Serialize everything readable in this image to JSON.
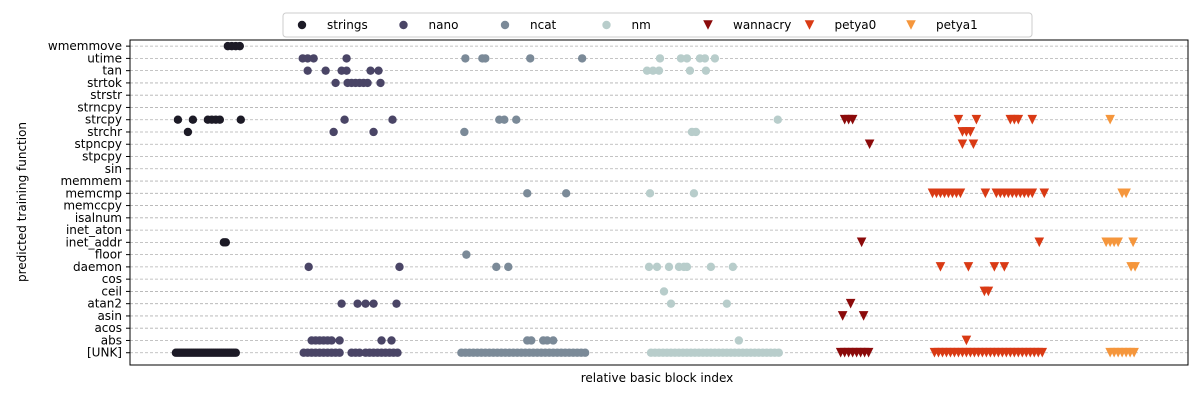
{
  "chart_data": {
    "type": "scatter",
    "xlabel": "relative basic block index",
    "ylabel": "predicted training function",
    "xlim": [
      0,
      1060
    ],
    "ylim": [
      -1,
      25.5
    ],
    "x_ticks": "none",
    "grid": {
      "axis": "y",
      "style": "dashed"
    },
    "legend_position": "top-center",
    "categories": [
      "[UNK]",
      "abs",
      "acos",
      "asin",
      "atan2",
      "ceil",
      "cos",
      "daemon",
      "floor",
      "inet_addr",
      "inet_aton",
      "isalnum",
      "memccpy",
      "memcmp",
      "memmem",
      "sin",
      "stpcpy",
      "stpncpy",
      "strchr",
      "strcpy",
      "strncpy",
      "strstr",
      "strtok",
      "tan",
      "utime",
      "wmemmove"
    ],
    "series": [
      {
        "name": "strings",
        "color": "#1c1a26",
        "marker": "circle",
        "points": [
          [
            46,
            0
          ],
          [
            48,
            0
          ],
          [
            50,
            0
          ],
          [
            52,
            0
          ],
          [
            54,
            0
          ],
          [
            56,
            0
          ],
          [
            58,
            0
          ],
          [
            60,
            0
          ],
          [
            62,
            0
          ],
          [
            64,
            0
          ],
          [
            66,
            0
          ],
          [
            68,
            0
          ],
          [
            70,
            0
          ],
          [
            72,
            0
          ],
          [
            74,
            0
          ],
          [
            76,
            0
          ],
          [
            78,
            0
          ],
          [
            80,
            0
          ],
          [
            82,
            0
          ],
          [
            84,
            0
          ],
          [
            86,
            0
          ],
          [
            88,
            0
          ],
          [
            90,
            0
          ],
          [
            92,
            0
          ],
          [
            94,
            0
          ],
          [
            96,
            0
          ],
          [
            98,
            0
          ],
          [
            100,
            0
          ],
          [
            102,
            0
          ],
          [
            104,
            0
          ],
          [
            106,
            0
          ],
          [
            94,
            9
          ],
          [
            96,
            9
          ],
          [
            58,
            18
          ],
          [
            48,
            19
          ],
          [
            63,
            19
          ],
          [
            78,
            19
          ],
          [
            82,
            19
          ],
          [
            86,
            19
          ],
          [
            90,
            19
          ],
          [
            111,
            19
          ],
          [
            98,
            25
          ],
          [
            102,
            25
          ],
          [
            106,
            25
          ],
          [
            110,
            25
          ]
        ]
      },
      {
        "name": "nano",
        "color": "#4a4566",
        "marker": "circle",
        "points": [
          [
            174,
            0
          ],
          [
            178,
            0
          ],
          [
            182,
            0
          ],
          [
            186,
            0
          ],
          [
            190,
            0
          ],
          [
            194,
            0
          ],
          [
            198,
            0
          ],
          [
            202,
            0
          ],
          [
            206,
            0
          ],
          [
            210,
            0
          ],
          [
            222,
            0
          ],
          [
            226,
            0
          ],
          [
            230,
            0
          ],
          [
            236,
            0
          ],
          [
            240,
            0
          ],
          [
            244,
            0
          ],
          [
            248,
            0
          ],
          [
            252,
            0
          ],
          [
            256,
            0
          ],
          [
            260,
            0
          ],
          [
            264,
            0
          ],
          [
            268,
            0
          ],
          [
            182,
            1
          ],
          [
            186,
            1
          ],
          [
            190,
            1
          ],
          [
            194,
            1
          ],
          [
            198,
            1
          ],
          [
            202,
            1
          ],
          [
            210,
            1
          ],
          [
            252,
            1
          ],
          [
            262,
            1
          ],
          [
            212,
            4
          ],
          [
            228,
            4
          ],
          [
            236,
            4
          ],
          [
            244,
            4
          ],
          [
            267,
            4
          ],
          [
            179,
            7
          ],
          [
            270,
            7
          ],
          [
            204,
            18
          ],
          [
            244,
            18
          ],
          [
            215,
            19
          ],
          [
            263,
            19
          ],
          [
            206,
            22
          ],
          [
            218,
            22
          ],
          [
            222,
            22
          ],
          [
            226,
            22
          ],
          [
            230,
            22
          ],
          [
            234,
            22
          ],
          [
            238,
            22
          ],
          [
            251,
            22
          ],
          [
            178,
            23
          ],
          [
            196,
            23
          ],
          [
            212,
            23
          ],
          [
            217,
            23
          ],
          [
            241,
            23
          ],
          [
            249,
            23
          ],
          [
            173,
            24
          ],
          [
            178,
            24
          ],
          [
            184,
            24
          ],
          [
            217,
            24
          ]
        ]
      },
      {
        "name": "ncat",
        "color": "#7b8a98",
        "marker": "circle",
        "points": [
          [
            332,
            0
          ],
          [
            336,
            0
          ],
          [
            340,
            0
          ],
          [
            344,
            0
          ],
          [
            348,
            0
          ],
          [
            352,
            0
          ],
          [
            356,
            0
          ],
          [
            360,
            0
          ],
          [
            364,
            0
          ],
          [
            368,
            0
          ],
          [
            372,
            0
          ],
          [
            376,
            0
          ],
          [
            380,
            0
          ],
          [
            384,
            0
          ],
          [
            388,
            0
          ],
          [
            392,
            0
          ],
          [
            396,
            0
          ],
          [
            400,
            0
          ],
          [
            404,
            0
          ],
          [
            408,
            0
          ],
          [
            412,
            0
          ],
          [
            416,
            0
          ],
          [
            420,
            0
          ],
          [
            424,
            0
          ],
          [
            428,
            0
          ],
          [
            432,
            0
          ],
          [
            436,
            0
          ],
          [
            440,
            0
          ],
          [
            444,
            0
          ],
          [
            448,
            0
          ],
          [
            452,
            0
          ],
          [
            456,
            0
          ],
          [
            398,
            1
          ],
          [
            402,
            1
          ],
          [
            414,
            1
          ],
          [
            418,
            1
          ],
          [
            424,
            1
          ],
          [
            337,
            8
          ],
          [
            367,
            7
          ],
          [
            379,
            7
          ],
          [
            398,
            13
          ],
          [
            437,
            13
          ],
          [
            335,
            18
          ],
          [
            370,
            19
          ],
          [
            375,
            19
          ],
          [
            387,
            19
          ],
          [
            336,
            24
          ],
          [
            353,
            24
          ],
          [
            356,
            24
          ],
          [
            401,
            24
          ],
          [
            453,
            24
          ]
        ]
      },
      {
        "name": "nm",
        "color": "#b8cdcb",
        "marker": "circle",
        "points": [
          [
            522,
            0
          ],
          [
            526,
            0
          ],
          [
            530,
            0
          ],
          [
            534,
            0
          ],
          [
            538,
            0
          ],
          [
            542,
            0
          ],
          [
            546,
            0
          ],
          [
            550,
            0
          ],
          [
            554,
            0
          ],
          [
            558,
            0
          ],
          [
            562,
            0
          ],
          [
            566,
            0
          ],
          [
            570,
            0
          ],
          [
            574,
            0
          ],
          [
            578,
            0
          ],
          [
            582,
            0
          ],
          [
            586,
            0
          ],
          [
            590,
            0
          ],
          [
            594,
            0
          ],
          [
            598,
            0
          ],
          [
            602,
            0
          ],
          [
            606,
            0
          ],
          [
            610,
            0
          ],
          [
            614,
            0
          ],
          [
            618,
            0
          ],
          [
            622,
            0
          ],
          [
            626,
            0
          ],
          [
            630,
            0
          ],
          [
            634,
            0
          ],
          [
            638,
            0
          ],
          [
            642,
            0
          ],
          [
            646,
            0
          ],
          [
            650,
            0
          ],
          [
            610,
            1
          ],
          [
            542,
            4
          ],
          [
            598,
            4
          ],
          [
            535,
            5
          ],
          [
            520,
            7
          ],
          [
            528,
            7
          ],
          [
            540,
            7
          ],
          [
            550,
            7
          ],
          [
            555,
            7
          ],
          [
            558,
            7
          ],
          [
            582,
            7
          ],
          [
            604,
            7
          ],
          [
            521,
            13
          ],
          [
            565,
            13
          ],
          [
            563,
            18
          ],
          [
            567,
            18
          ],
          [
            649,
            19
          ],
          [
            518,
            23
          ],
          [
            524,
            23
          ],
          [
            530,
            23
          ],
          [
            561,
            23
          ],
          [
            577,
            23
          ],
          [
            531,
            24
          ],
          [
            552,
            24
          ],
          [
            558,
            24
          ],
          [
            571,
            24
          ],
          [
            576,
            24
          ],
          [
            586,
            24
          ]
        ]
      },
      {
        "name": "wannacry",
        "color": "#8b0a0a",
        "marker": "triangle-down",
        "points": [
          [
            712,
            0
          ],
          [
            716,
            0
          ],
          [
            720,
            0
          ],
          [
            724,
            0
          ],
          [
            728,
            0
          ],
          [
            732,
            0
          ],
          [
            736,
            0
          ],
          [
            740,
            0
          ],
          [
            714,
            3
          ],
          [
            735,
            3
          ],
          [
            722,
            4
          ],
          [
            733,
            9
          ],
          [
            741,
            17
          ],
          [
            716,
            19
          ],
          [
            720,
            19
          ],
          [
            724,
            19
          ]
        ]
      },
      {
        "name": "petya0",
        "color": "#d93a14",
        "marker": "triangle-down",
        "points": [
          [
            806,
            0
          ],
          [
            810,
            0
          ],
          [
            814,
            0
          ],
          [
            818,
            0
          ],
          [
            822,
            0
          ],
          [
            826,
            0
          ],
          [
            830,
            0
          ],
          [
            834,
            0
          ],
          [
            838,
            0
          ],
          [
            842,
            0
          ],
          [
            846,
            0
          ],
          [
            850,
            0
          ],
          [
            854,
            0
          ],
          [
            858,
            0
          ],
          [
            862,
            0
          ],
          [
            866,
            0
          ],
          [
            870,
            0
          ],
          [
            874,
            0
          ],
          [
            878,
            0
          ],
          [
            882,
            0
          ],
          [
            886,
            0
          ],
          [
            890,
            0
          ],
          [
            894,
            0
          ],
          [
            898,
            0
          ],
          [
            902,
            0
          ],
          [
            906,
            0
          ],
          [
            910,
            0
          ],
          [
            914,
            0
          ],
          [
            838,
            1
          ],
          [
            856,
            5
          ],
          [
            860,
            5
          ],
          [
            812,
            7
          ],
          [
            840,
            7
          ],
          [
            866,
            7
          ],
          [
            876,
            7
          ],
          [
            911,
            9
          ],
          [
            804,
            13
          ],
          [
            808,
            13
          ],
          [
            812,
            13
          ],
          [
            816,
            13
          ],
          [
            820,
            13
          ],
          [
            824,
            13
          ],
          [
            828,
            13
          ],
          [
            832,
            13
          ],
          [
            857,
            13
          ],
          [
            868,
            13
          ],
          [
            872,
            13
          ],
          [
            876,
            13
          ],
          [
            880,
            13
          ],
          [
            884,
            13
          ],
          [
            888,
            13
          ],
          [
            892,
            13
          ],
          [
            896,
            13
          ],
          [
            900,
            13
          ],
          [
            904,
            13
          ],
          [
            916,
            13
          ],
          [
            834,
            17
          ],
          [
            845,
            17
          ],
          [
            834,
            18
          ],
          [
            838,
            18
          ],
          [
            842,
            18
          ],
          [
            830,
            19
          ],
          [
            848,
            19
          ],
          [
            882,
            19
          ],
          [
            886,
            19
          ],
          [
            890,
            19
          ],
          [
            904,
            19
          ]
        ]
      },
      {
        "name": "petya1",
        "color": "#f5963c",
        "marker": "triangle-down",
        "points": [
          [
            982,
            0
          ],
          [
            986,
            0
          ],
          [
            990,
            0
          ],
          [
            994,
            0
          ],
          [
            998,
            0
          ],
          [
            1002,
            0
          ],
          [
            1006,
            0
          ],
          [
            1003,
            7
          ],
          [
            1007,
            7
          ],
          [
            978,
            9
          ],
          [
            982,
            9
          ],
          [
            986,
            9
          ],
          [
            990,
            9
          ],
          [
            1005,
            9
          ],
          [
            994,
            13
          ],
          [
            998,
            13
          ],
          [
            982,
            19
          ]
        ]
      }
    ]
  }
}
